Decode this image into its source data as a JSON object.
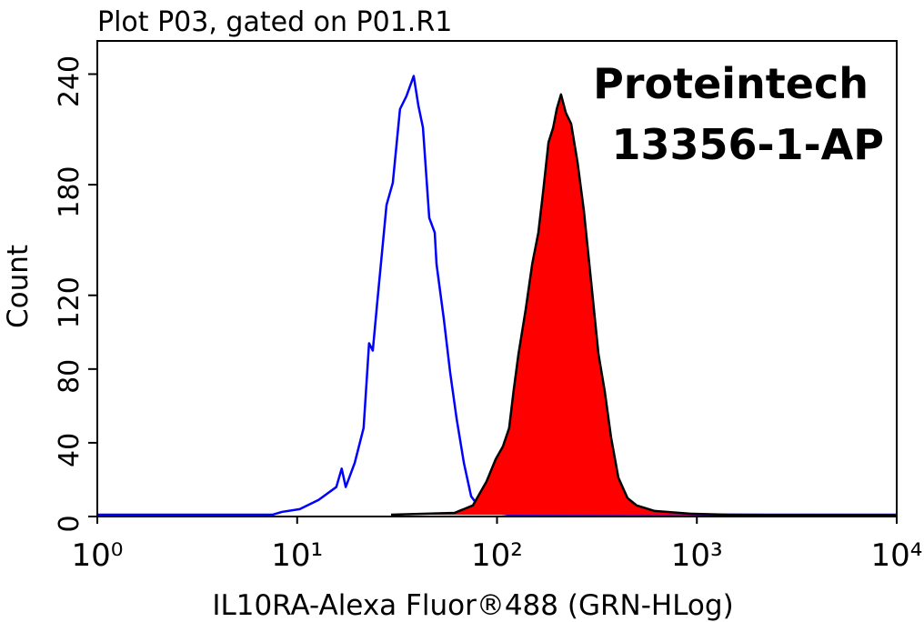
{
  "chart_data": {
    "type": "line",
    "title": "Plot P03, gated on P01.R1",
    "annotations": [
      "Proteintech",
      "13356-1-AP"
    ],
    "xlabel": "IL10RA-Alexa Fluor®488 (GRN-HLog)",
    "ylabel": "Count",
    "xscale": "log",
    "xlim": [
      1,
      10000
    ],
    "ylim": [
      0,
      258
    ],
    "xticks": [
      {
        "value": 1,
        "label": "10⁰"
      },
      {
        "value": 10,
        "label": "10¹"
      },
      {
        "value": 100,
        "label": "10²"
      },
      {
        "value": 1000,
        "label": "10³"
      },
      {
        "value": 10000,
        "label": "10⁴"
      }
    ],
    "yticks": [
      0,
      40,
      80,
      120,
      180,
      240
    ],
    "series": [
      {
        "color": "#0000ff",
        "fill": false,
        "x": [
          1,
          2.65,
          7.55,
          8.39,
          10.3,
          12.8,
          15.7,
          16.7,
          17.5,
          19.4,
          21.5,
          22.9,
          23.9,
          25.2,
          28.0,
          30.1,
          32.7,
          35.2,
          38.3,
          40.4,
          42.6,
          45.8,
          48.8,
          49.8,
          54.2,
          58.3,
          62.8,
          68.3,
          74.2,
          84.1,
          115,
          500,
          10000
        ],
        "values": [
          1,
          1,
          1,
          2.5,
          4,
          9,
          16,
          26,
          16,
          29,
          48,
          94,
          90,
          117,
          169,
          181,
          221,
          228,
          239,
          223,
          211,
          162,
          154,
          137,
          107,
          78,
          53,
          29,
          11,
          3,
          1,
          1,
          1
        ]
      },
      {
        "color": "#ff0000",
        "line_color": "#000000",
        "fill": true,
        "x": [
          29.5,
          61.4,
          75.7,
          88.6,
          98.4,
          107,
          115,
          121,
          128,
          139,
          150,
          161,
          170,
          181,
          191,
          199,
          209,
          221,
          235,
          253,
          272,
          296,
          322,
          346,
          372,
          405,
          450,
          500,
          615,
          937,
          1425,
          10000
        ],
        "values": [
          1,
          2,
          6,
          19,
          31,
          38,
          48,
          68,
          88,
          112,
          137,
          154,
          176,
          203,
          211,
          221,
          229,
          219,
          213,
          192,
          166,
          127,
          88,
          68,
          43,
          21,
          10,
          6,
          3,
          1.5,
          1,
          0.5
        ]
      }
    ]
  }
}
